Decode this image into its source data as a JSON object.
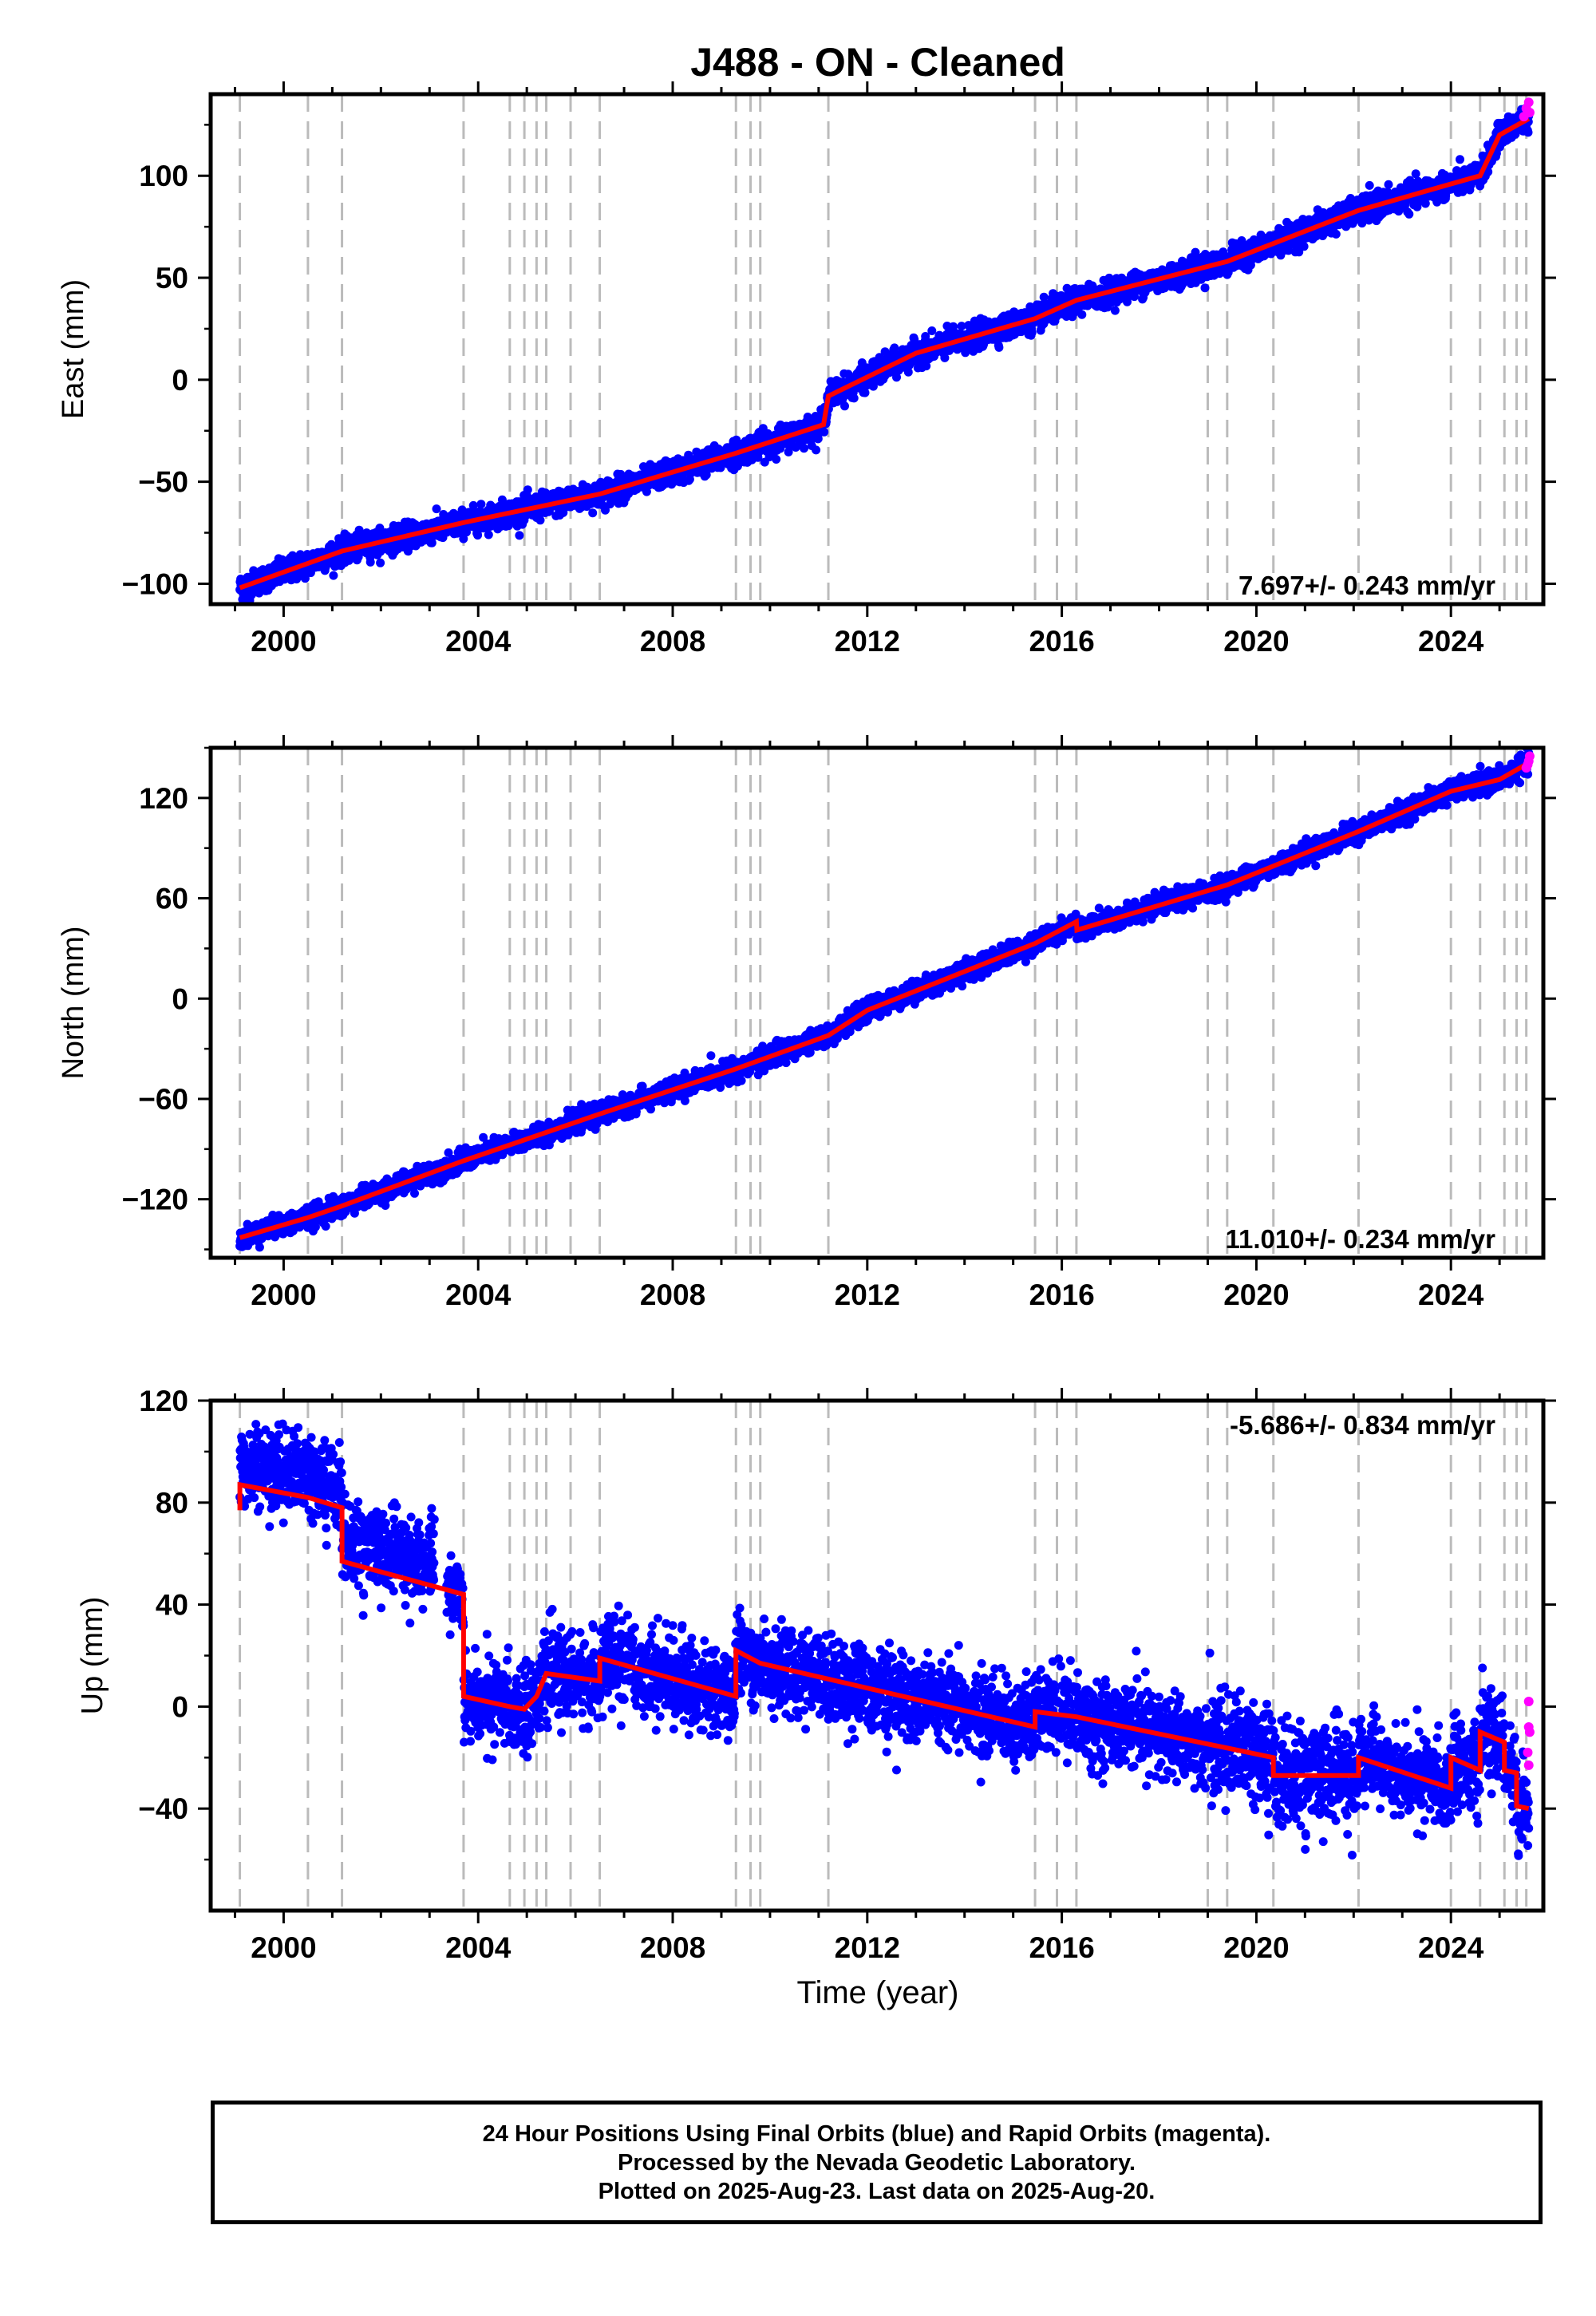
{
  "title": "J488  - ON - Cleaned",
  "xlabel": "Time (year)",
  "footer": {
    "line1": "24 Hour Positions Using Final Orbits (blue) and Rapid Orbits (magenta).",
    "line2": "Processed by the Nevada Geodetic Laboratory.",
    "line3": "Plotted on 2025-Aug-23. Last data on 2025-Aug-20."
  },
  "colors": {
    "final": "#0000ff",
    "rapid": "#ff00ff",
    "model": "#ff0000",
    "event_lines": "#bbbbbb"
  },
  "chart_data": [
    {
      "type": "scatter",
      "name": "east",
      "ylabel": "East (mm)",
      "xlim": [
        1998.5,
        2025.9
      ],
      "ylim": [
        -110,
        140
      ],
      "xticks": [
        2000,
        2004,
        2008,
        2012,
        2016,
        2020,
        2024
      ],
      "yticks": [
        -100,
        -50,
        0,
        50,
        100
      ],
      "ytick_labels": [
        "−100",
        "−50",
        "0",
        "50",
        "100"
      ],
      "rate": "7.697+/- 0.243 mm/yr",
      "rate_position": "bottom-right",
      "event_lines": [
        1999.1,
        2000.5,
        2001.2,
        2003.7,
        2004.65,
        2004.95,
        2005.2,
        2005.4,
        2005.9,
        2006.5,
        2009.3,
        2009.6,
        2009.8,
        2011.2,
        2015.45,
        2015.9,
        2016.3,
        2019.0,
        2019.4,
        2020.35,
        2022.1,
        2024.0,
        2024.6,
        2025.1,
        2025.35,
        2025.55
      ],
      "model": [
        [
          1999.1,
          -102
        ],
        [
          2000.5,
          -90
        ],
        [
          2001.2,
          -84
        ],
        [
          2003.7,
          -70
        ],
        [
          2006.5,
          -56
        ],
        [
          2009.3,
          -36
        ],
        [
          2011.1,
          -22
        ],
        [
          2011.2,
          -8
        ],
        [
          2013,
          13
        ],
        [
          2015.45,
          30
        ],
        [
          2016.3,
          39
        ],
        [
          2019.4,
          58
        ],
        [
          2022.1,
          83
        ],
        [
          2024.0,
          96
        ],
        [
          2024.6,
          100
        ],
        [
          2025.0,
          120
        ],
        [
          2025.6,
          128
        ]
      ],
      "noise": 3.0,
      "rapid": [
        [
          2025.5,
          129
        ],
        [
          2025.55,
          133
        ],
        [
          2025.6,
          136
        ],
        [
          2025.62,
          131
        ]
      ]
    },
    {
      "type": "scatter",
      "name": "north",
      "ylabel": "North (mm)",
      "xlim": [
        1998.5,
        2025.9
      ],
      "ylim": [
        -155,
        150
      ],
      "xticks": [
        2000,
        2004,
        2008,
        2012,
        2016,
        2020,
        2024
      ],
      "yticks": [
        -120,
        -60,
        0,
        60,
        120
      ],
      "ytick_labels": [
        "−120",
        "−60",
        "0",
        "60",
        "120"
      ],
      "rate": "11.010+/- 0.234 mm/yr",
      "rate_position": "bottom-right",
      "event_lines": [
        1999.1,
        2000.5,
        2001.2,
        2003.7,
        2004.65,
        2004.95,
        2005.2,
        2005.4,
        2005.9,
        2006.5,
        2009.3,
        2009.6,
        2009.8,
        2011.2,
        2015.45,
        2015.9,
        2016.3,
        2019.0,
        2019.4,
        2020.35,
        2022.1,
        2024.0,
        2024.6,
        2025.1,
        2025.35,
        2025.55
      ],
      "model": [
        [
          1999.1,
          -143
        ],
        [
          2000.5,
          -131
        ],
        [
          2001.2,
          -124
        ],
        [
          2003.7,
          -97
        ],
        [
          2006.5,
          -69
        ],
        [
          2009.3,
          -42
        ],
        [
          2011.2,
          -22
        ],
        [
          2012,
          -7
        ],
        [
          2015.45,
          33
        ],
        [
          2016.3,
          46
        ],
        [
          2016.31,
          41
        ],
        [
          2019.4,
          68
        ],
        [
          2022.1,
          100
        ],
        [
          2024.0,
          124
        ],
        [
          2025.0,
          131
        ],
        [
          2025.6,
          141
        ]
      ],
      "noise": 3.0,
      "rapid": [
        [
          2025.55,
          138
        ],
        [
          2025.6,
          142
        ],
        [
          2025.62,
          145
        ],
        [
          2025.58,
          140
        ]
      ]
    },
    {
      "type": "scatter",
      "name": "up",
      "ylabel": "Up (mm)",
      "xlim": [
        1998.5,
        2025.9
      ],
      "ylim": [
        -80,
        120
      ],
      "xticks": [
        2000,
        2004,
        2008,
        2012,
        2016,
        2020,
        2024
      ],
      "yticks": [
        -40,
        0,
        40,
        80,
        120
      ],
      "ytick_labels": [
        "−40",
        "0",
        "40",
        "80",
        "120"
      ],
      "xlabel": "Time (year)",
      "rate": "-5.686+/- 0.834 mm/yr",
      "rate_position": "top-right",
      "event_lines": [
        1999.1,
        2000.5,
        2001.2,
        2003.7,
        2004.65,
        2004.95,
        2005.2,
        2005.4,
        2005.9,
        2006.5,
        2009.3,
        2009.6,
        2009.8,
        2011.2,
        2015.45,
        2015.9,
        2016.3,
        2019.0,
        2019.4,
        2020.35,
        2022.1,
        2024.0,
        2024.6,
        2025.1,
        2025.35,
        2025.55
      ],
      "data_gap": [
        2003.1,
        2003.35
      ],
      "model": [
        [
          1999.1,
          77
        ],
        [
          1999.1,
          87
        ],
        [
          2000.5,
          82
        ],
        [
          2001.2,
          78
        ],
        [
          2001.2,
          57
        ],
        [
          2003.7,
          44
        ],
        [
          2003.7,
          4
        ],
        [
          2004.65,
          0
        ],
        [
          2004.95,
          -1
        ],
        [
          2005.2,
          4
        ],
        [
          2005.4,
          13
        ],
        [
          2006.5,
          10
        ],
        [
          2006.5,
          19
        ],
        [
          2009.3,
          4
        ],
        [
          2009.3,
          22
        ],
        [
          2009.8,
          17
        ],
        [
          2015.45,
          -8
        ],
        [
          2015.45,
          -2
        ],
        [
          2016.3,
          -4
        ],
        [
          2020.35,
          -20
        ],
        [
          2020.35,
          -27
        ],
        [
          2022.1,
          -27
        ],
        [
          2022.1,
          -20
        ],
        [
          2024.0,
          -32
        ],
        [
          2024.0,
          -20
        ],
        [
          2024.6,
          -25
        ],
        [
          2024.6,
          -10
        ],
        [
          2025.1,
          -14
        ],
        [
          2025.1,
          -25
        ],
        [
          2025.35,
          -26
        ],
        [
          2025.35,
          -39
        ],
        [
          2025.6,
          -40
        ]
      ],
      "noise": 8.0,
      "rapid": [
        [
          2025.6,
          2
        ],
        [
          2025.6,
          -8
        ],
        [
          2025.62,
          -10
        ],
        [
          2025.58,
          -18
        ],
        [
          2025.6,
          -23
        ]
      ]
    }
  ]
}
